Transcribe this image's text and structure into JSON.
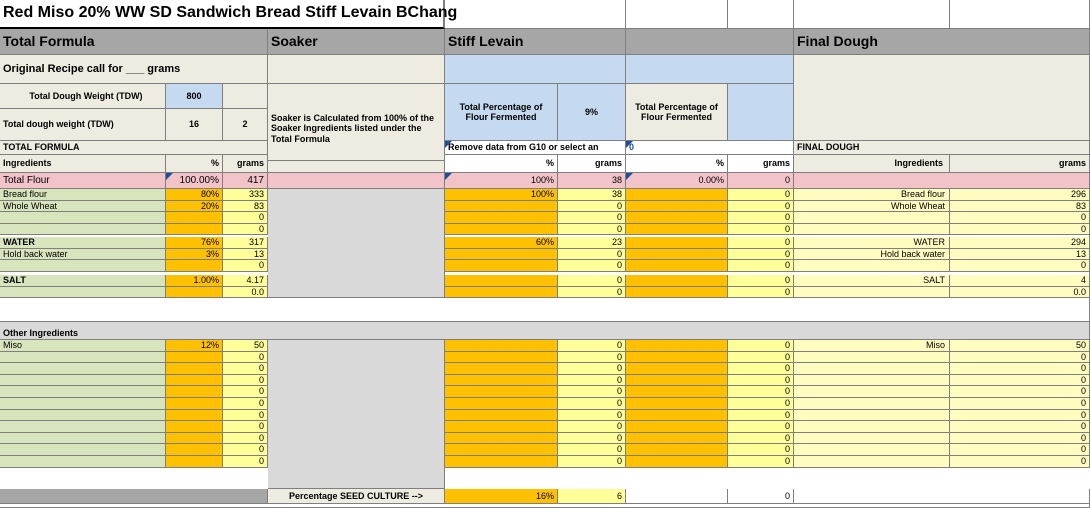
{
  "title": "Red Miso 20% WW SD Sandwich Bread Stiff Levain BChang",
  "headers": {
    "total_formula": "Total Formula",
    "soaker": "Soaker",
    "stiff_levain": "Stiff Levain",
    "final_dough": "Final Dough"
  },
  "original_recipe": "Original Recipe call for ___ grams",
  "tdw": {
    "label": "Total Dough Weight (TDW)",
    "value": "800"
  },
  "tdw2": {
    "label": "Total dough weight (TDW)",
    "value": "16",
    "extra": "2"
  },
  "soaker_note": "Soaker is Calculated from 100% of the Soaker Ingredients listed under the Total Formula",
  "levain_pct": {
    "label": "Total Percentage of Flour Fermented",
    "value": "9%"
  },
  "col4_pct_label": "Total Percentage of Flour Fermented",
  "labels": {
    "total_formula_caps": "TOTAL FORMULA",
    "remove_note": "Remove data from G10 or select an",
    "col4_note": "0",
    "final_dough_caps": "FINAL DOUGH",
    "ingredients": "Ingredients",
    "pct": "%",
    "grams": "grams",
    "other_ingredients": "Other Ingredients",
    "seed_culture": "Percentage SEED CULTURE  -->"
  },
  "total_flour": {
    "label": "Total Flour",
    "pct": "100.00%",
    "grams": "417",
    "lev_pct": "100%",
    "lev_g": "38",
    "c4_pct": "0.00%",
    "c4_g": "0"
  },
  "rows": [
    {
      "label": "Bread flour",
      "pct": "80%",
      "g": "333",
      "lev_pct": "100%",
      "lev_g": "38",
      "c4_g": "0",
      "fd_label": "Bread flour",
      "fd_g": "296"
    },
    {
      "label": "Whole Wheat",
      "pct": "20%",
      "g": "83",
      "lev_pct": "",
      "lev_g": "0",
      "c4_g": "0",
      "fd_label": "Whole Wheat",
      "fd_g": "83"
    },
    {
      "label": "",
      "pct": "",
      "g": "0",
      "lev_pct": "",
      "lev_g": "0",
      "c4_g": "0",
      "fd_label": "",
      "fd_g": "0"
    },
    {
      "label": "",
      "pct": "",
      "g": "0",
      "lev_pct": "",
      "lev_g": "0",
      "c4_g": "0",
      "fd_label": "",
      "fd_g": "0"
    },
    {
      "label": "WATER",
      "pct": "76%",
      "g": "317",
      "lev_pct": "60%",
      "lev_g": "23",
      "c4_g": "0",
      "fd_label": "WATER",
      "fd_g": "294"
    },
    {
      "label": "Hold back water",
      "pct": "3%",
      "g": "13",
      "lev_pct": "",
      "lev_g": "0",
      "c4_g": "0",
      "fd_label": "Hold back water",
      "fd_g": "13"
    },
    {
      "label": "",
      "pct": "",
      "g": "0",
      "lev_pct": "",
      "lev_g": "0",
      "c4_g": "0",
      "fd_label": "",
      "fd_g": "0"
    },
    {
      "label": "SALT",
      "pct": "1.00%",
      "g": "4.17",
      "lev_pct": "",
      "lev_g": "0",
      "c4_g": "0",
      "fd_label": "SALT",
      "fd_g": "4"
    },
    {
      "label": "",
      "pct": "",
      "g": "0.0",
      "lev_pct": "",
      "lev_g": "0",
      "c4_g": "0",
      "fd_label": "",
      "fd_g": "0.0"
    },
    {
      "label": "Miso",
      "pct": "12%",
      "g": "50",
      "lev_pct": "",
      "lev_g": "0",
      "c4_g": "0",
      "fd_label": "Miso",
      "fd_g": "50"
    },
    {
      "label": "",
      "pct": "",
      "g": "0",
      "lev_pct": "",
      "lev_g": "0",
      "c4_g": "0",
      "fd_label": "",
      "fd_g": "0"
    },
    {
      "label": "",
      "pct": "",
      "g": "0",
      "lev_pct": "",
      "lev_g": "0",
      "c4_g": "0",
      "fd_label": "",
      "fd_g": "0"
    },
    {
      "label": "",
      "pct": "",
      "g": "0",
      "lev_pct": "",
      "lev_g": "0",
      "c4_g": "0",
      "fd_label": "",
      "fd_g": "0"
    },
    {
      "label": "",
      "pct": "",
      "g": "0",
      "lev_pct": "",
      "lev_g": "0",
      "c4_g": "0",
      "fd_label": "",
      "fd_g": "0"
    },
    {
      "label": "",
      "pct": "",
      "g": "0",
      "lev_pct": "",
      "lev_g": "0",
      "c4_g": "0",
      "fd_label": "",
      "fd_g": "0"
    },
    {
      "label": "",
      "pct": "",
      "g": "0",
      "lev_pct": "",
      "lev_g": "0",
      "c4_g": "0",
      "fd_label": "",
      "fd_g": "0"
    },
    {
      "label": "",
      "pct": "",
      "g": "0",
      "lev_pct": "",
      "lev_g": "0",
      "c4_g": "0",
      "fd_label": "",
      "fd_g": "0"
    },
    {
      "label": "",
      "pct": "",
      "g": "0",
      "lev_pct": "",
      "lev_g": "0",
      "c4_g": "0",
      "fd_label": "",
      "fd_g": "0"
    },
    {
      "label": "",
      "pct": "",
      "g": "0",
      "lev_pct": "",
      "lev_g": "0",
      "c4_g": "0",
      "fd_label": "",
      "fd_g": "0"
    },
    {
      "label": "",
      "pct": "",
      "g": "0",
      "lev_pct": "",
      "lev_g": "0",
      "c4_g": "0",
      "fd_label": "",
      "fd_g": "0"
    }
  ],
  "seed": {
    "lev_pct": "16%",
    "lev_g": "6",
    "c4_g": "0"
  },
  "colors": {
    "header_gray": "#a6a6a6",
    "light_gray": "#eeece1",
    "soaker_gray": "#d9d9d9",
    "blue": "#c5d9f1",
    "pink": "#f2c4c9",
    "green": "#d8e4bc",
    "orange": "#ffc000",
    "yellow": "#ffff99",
    "pale_yellow": "#fffcc0"
  }
}
